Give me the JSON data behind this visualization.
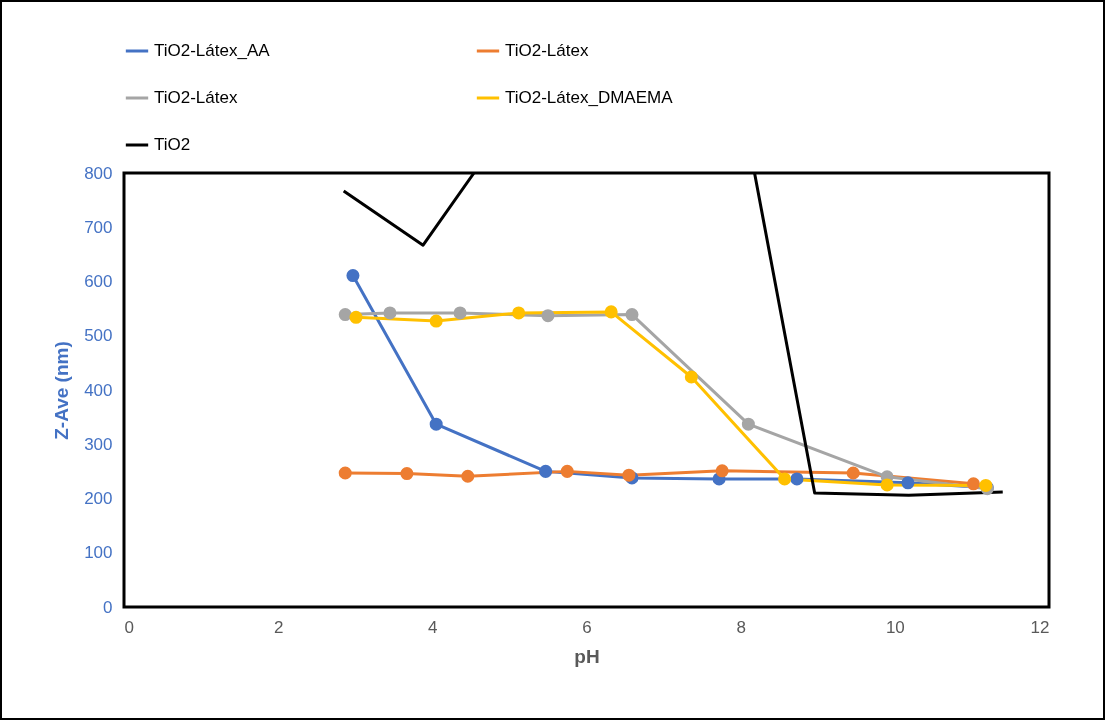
{
  "chart_data": {
    "type": "line",
    "xlabel": "pH",
    "ylabel": "Z-Ave (nm)",
    "xlim": [
      0,
      12
    ],
    "xticks": [
      0,
      2,
      4,
      6,
      8,
      10,
      12
    ],
    "ylim": [
      0,
      800
    ],
    "yticks": [
      0,
      100,
      200,
      300,
      400,
      500,
      600,
      700,
      800
    ],
    "grid": false,
    "legend": "top",
    "marker": "circle",
    "series": [
      {
        "name": "TiO2-Látex_AA",
        "color": "#4472c4",
        "x": [
          2.97,
          4.05,
          5.47,
          6.59,
          7.72,
          8.73,
          10.17,
          11.2
        ],
        "values": [
          611,
          337,
          250,
          238,
          236,
          236,
          229,
          220
        ]
      },
      {
        "name": "TiO2-Látex",
        "color": "#ed7d31",
        "x": [
          2.87,
          3.67,
          4.46,
          5.75,
          6.55,
          7.76,
          9.46,
          11.02
        ],
        "values": [
          247,
          246,
          241,
          250,
          243,
          251,
          247,
          227
        ]
      },
      {
        "name": "TiO2-Látex",
        "color": "#a5a5a5",
        "x": [
          2.87,
          3.45,
          4.36,
          5.5,
          6.59,
          8.1,
          9.9,
          11.2
        ],
        "values": [
          539,
          542,
          542,
          537,
          539,
          337,
          240,
          218
        ]
      },
      {
        "name": "TiO2-Látex_DMAEMA",
        "color": "#ffc000",
        "x": [
          3.01,
          4.05,
          5.12,
          6.32,
          7.36,
          8.57,
          9.9,
          11.18
        ],
        "values": [
          534,
          527,
          542,
          544,
          424,
          236,
          225,
          224
        ]
      },
      {
        "name": "TiO2",
        "color": "#000000",
        "marker": "none",
        "x": [
          2.85,
          3.88,
          4.54,
          6.3,
          8.18,
          8.96,
          10.18,
          11.4
        ],
        "values": [
          767,
          667,
          800,
          null,
          800,
          210,
          206,
          212
        ]
      }
    ]
  }
}
